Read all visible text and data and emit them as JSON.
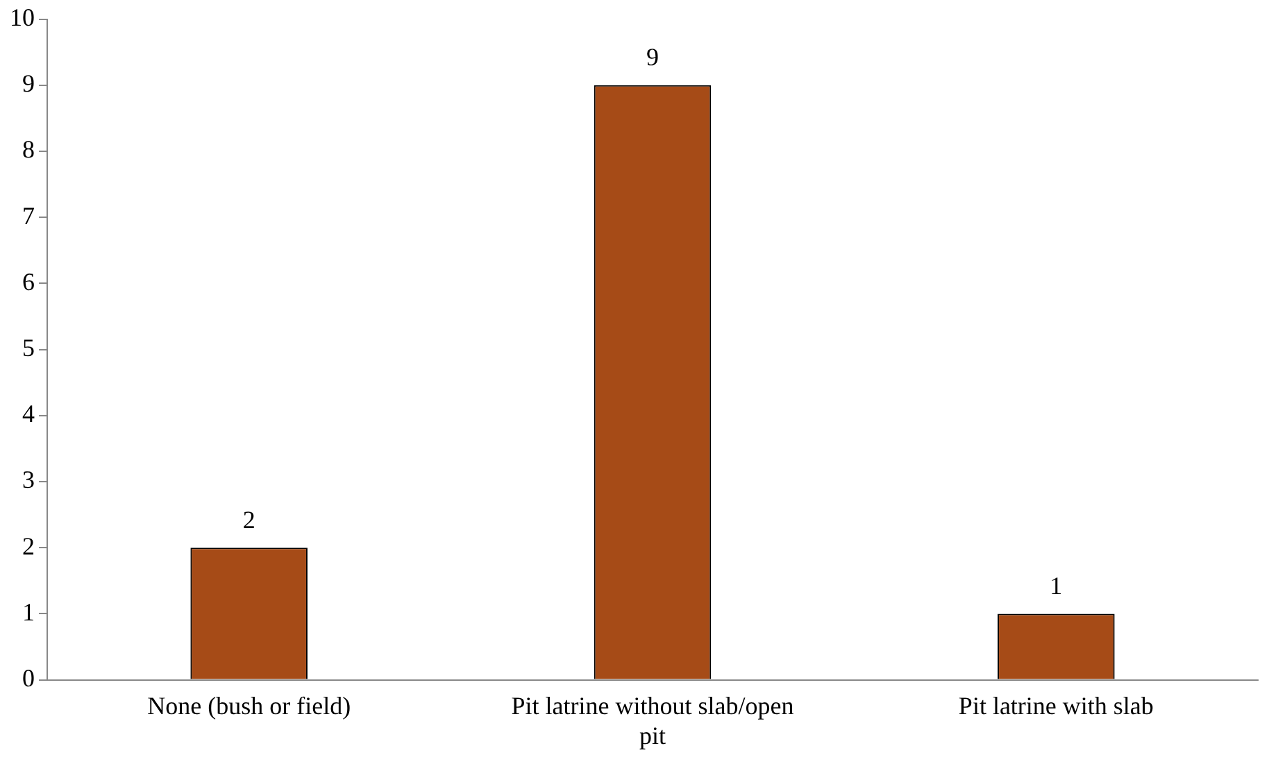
{
  "chart_data": {
    "type": "bar",
    "categories": [
      "None (bush or field)",
      "Pit latrine without slab/open pit",
      "Pit latrine with slab"
    ],
    "values": [
      2,
      9,
      1
    ],
    "color": "#a64b17",
    "ylim": [
      0,
      10
    ],
    "yticks": [
      0,
      1,
      2,
      3,
      4,
      5,
      6,
      7,
      8,
      9,
      10
    ],
    "grid": false,
    "legend": false,
    "data_labels": true
  }
}
